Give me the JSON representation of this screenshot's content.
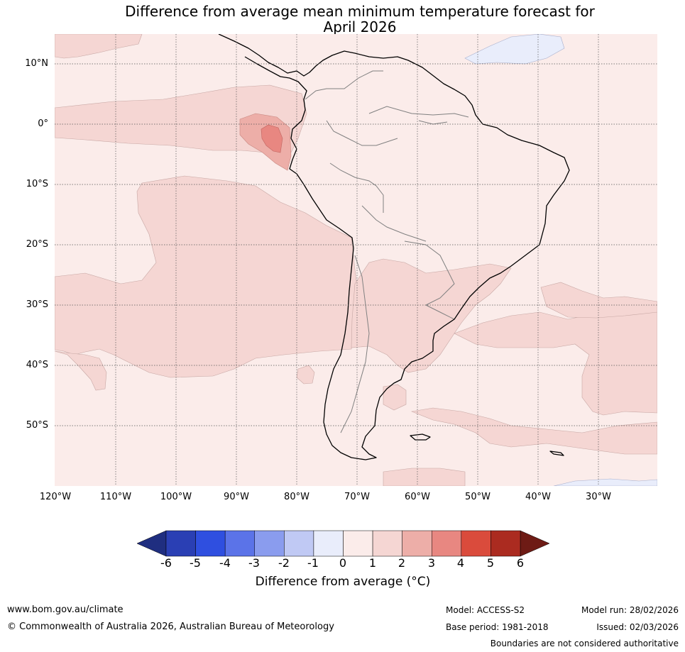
{
  "title": {
    "line1": "Difference from average mean minimum temperature forecast for",
    "line2": "April 2026"
  },
  "map": {
    "lat_labels": [
      "10°N",
      "0°",
      "10°S",
      "20°S",
      "30°S",
      "40°S",
      "50°S"
    ],
    "lon_labels": [
      "120°W",
      "110°W",
      "100°W",
      "90°W",
      "80°W",
      "70°W",
      "60°W",
      "50°W",
      "40°W",
      "30°W"
    ],
    "colors": {
      "band_0_1": "#fbecea",
      "band_1_2": "#f5d6d3",
      "band_2_3": "#edaea8",
      "band_3_4": "#e88781",
      "band_m1_0": "#e9edfb",
      "coastline": "#000000",
      "borders": "#808080",
      "gridlines": "#555555"
    }
  },
  "colorbar": {
    "ticks": [
      "-6",
      "-5",
      "-4",
      "-3",
      "-2",
      "-1",
      "0",
      "1",
      "2",
      "3",
      "4",
      "5",
      "6"
    ],
    "colors": [
      "#1f2e80",
      "#2a3fb4",
      "#2f4fe0",
      "#5b73e8",
      "#8a9cee",
      "#c0c9f4",
      "#e9edfb",
      "#fbecea",
      "#f5d6d3",
      "#edaea8",
      "#e88781",
      "#da4b3c",
      "#ab2b20",
      "#6e1b15"
    ],
    "label": "Difference from average (°C)"
  },
  "footer": {
    "website": "www.bom.gov.au/climate",
    "copyright": "© Commonwealth of Australia 2026, Australian Bureau of Meteorology",
    "model": "Model: ACCESS-S2",
    "model_run": "Model run: 28/02/2026",
    "base_period": "Base period: 1981-2018",
    "issued": "Issued: 02/03/2026",
    "disclaimer": "Boundaries are not considered authoritative"
  }
}
